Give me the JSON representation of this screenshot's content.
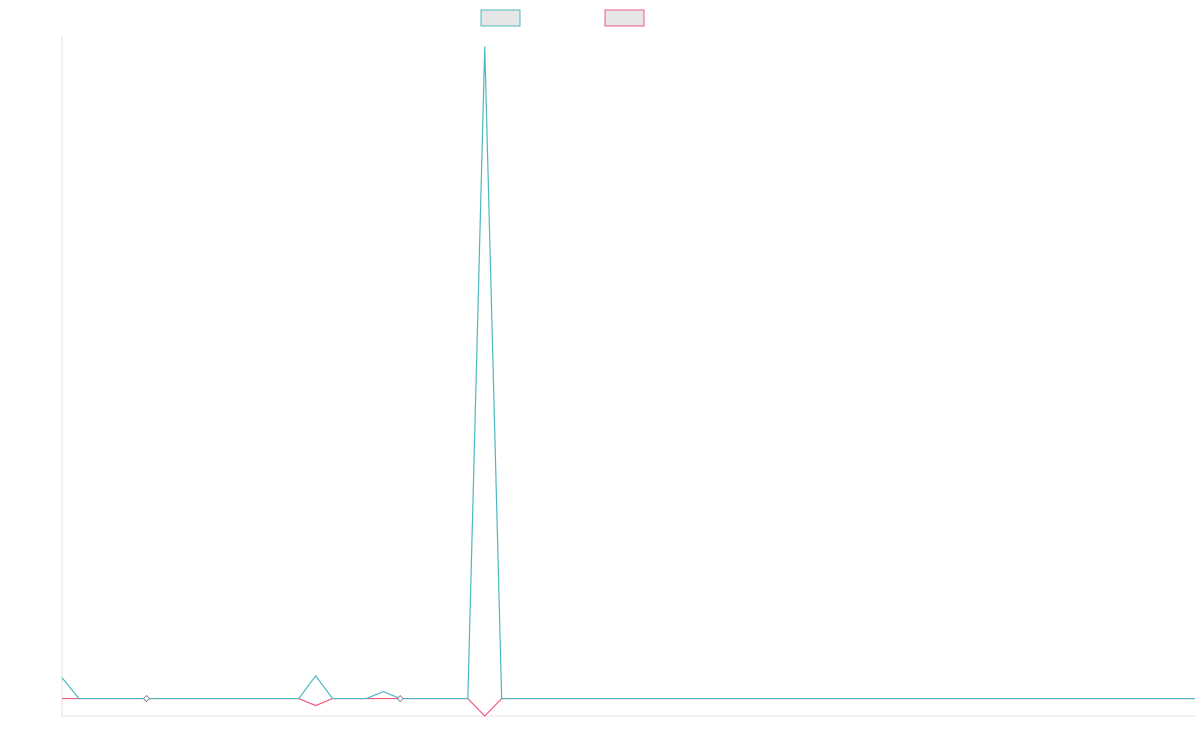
{
  "chart_data": {
    "type": "line",
    "title": "",
    "xlabel": "",
    "ylabel": "",
    "legend_position": "top-center",
    "grid": false,
    "x_count": 68,
    "ylim": [
      -1,
      38
    ],
    "series": [
      {
        "color": "#4bb8c0",
        "swatch_fill": "#e6e6e6",
        "values": [
          1.2,
          0,
          0,
          0,
          0,
          0,
          0,
          0,
          0,
          0,
          0,
          0,
          0,
          0,
          0,
          1.3,
          0,
          0,
          0,
          0.4,
          0,
          0,
          0,
          0,
          0,
          37.4,
          0,
          0,
          0,
          0,
          0,
          0,
          0,
          0,
          0,
          0,
          0,
          0,
          0,
          0,
          0,
          0,
          0,
          0,
          0,
          0,
          0,
          0,
          0,
          0,
          0,
          0,
          0,
          0,
          0,
          0,
          0,
          0,
          0,
          0,
          0,
          0,
          0,
          0,
          0,
          0,
          0,
          0
        ]
      },
      {
        "color": "#ef5b7c",
        "swatch_fill": "#e6e6e6",
        "values": [
          0,
          0,
          0,
          0,
          0,
          0,
          0,
          0,
          0,
          0,
          0,
          0,
          0,
          0,
          0,
          -0.4,
          0,
          0,
          0,
          0,
          0,
          0,
          0,
          0,
          0,
          -1,
          0,
          0,
          0,
          0,
          0,
          0,
          0,
          0,
          0,
          0,
          0,
          0,
          0,
          0,
          0,
          0,
          0,
          0,
          0,
          0,
          0,
          0,
          0,
          0,
          0,
          0,
          0,
          0,
          0,
          0,
          0,
          0,
          0,
          0,
          0,
          0,
          0,
          0,
          0,
          0,
          0,
          0
        ]
      }
    ],
    "markers": [
      {
        "series": 0,
        "index": 5
      },
      {
        "series": 0,
        "index": 20
      }
    ]
  }
}
